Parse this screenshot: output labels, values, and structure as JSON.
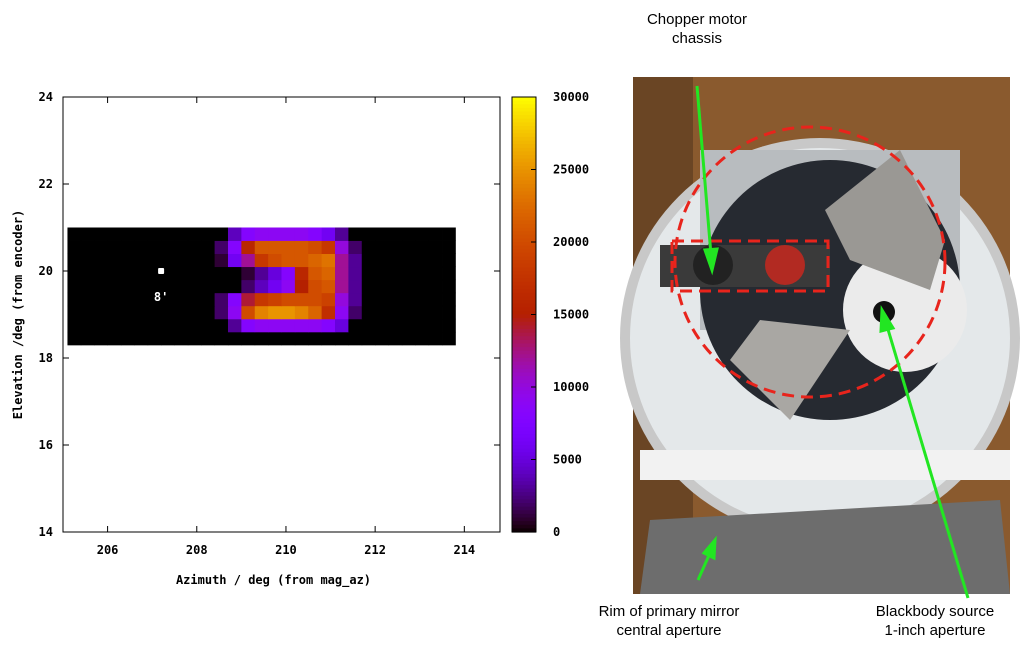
{
  "chart_data": {
    "type": "heatmap",
    "xlabel": "Azimuth / deg (from mag_az)",
    "ylabel": "Elevation /deg (from encoder)",
    "xlim": [
      205,
      214.8
    ],
    "xticks": [
      206,
      208,
      210,
      212,
      214
    ],
    "ylim": [
      14,
      24
    ],
    "yticks": [
      14,
      16,
      18,
      20,
      22,
      24
    ],
    "cblim": [
      0,
      30000
    ],
    "cbticks": [
      0,
      5000,
      10000,
      15000,
      20000,
      25000,
      30000
    ],
    "x": [
      205.25,
      205.55,
      205.85,
      206.15,
      206.45,
      206.75,
      207.05,
      207.35,
      207.65,
      207.95,
      208.25,
      208.55,
      208.85,
      209.15,
      209.45,
      209.75,
      210.05,
      210.35,
      210.65,
      210.95,
      211.25,
      211.55,
      211.85,
      212.15,
      212.45,
      212.75,
      213.05,
      213.35,
      213.65
    ],
    "y": [
      18.45,
      18.75,
      19.05,
      19.35,
      19.65,
      19.95,
      20.25,
      20.55,
      20.85
    ],
    "z": [
      [
        0,
        0,
        0,
        0,
        0,
        0,
        0,
        0,
        0,
        0,
        0,
        0,
        0,
        0,
        0,
        0,
        0,
        0,
        0,
        0,
        0,
        0,
        0,
        0,
        0,
        0,
        0,
        0,
        0
      ],
      [
        0,
        0,
        0,
        0,
        0,
        0,
        0,
        0,
        0,
        0,
        0,
        0,
        3000,
        8000,
        9000,
        9000,
        9000,
        9000,
        9000,
        8000,
        5000,
        0,
        0,
        0,
        0,
        0,
        0,
        0,
        0
      ],
      [
        0,
        0,
        0,
        0,
        0,
        0,
        0,
        0,
        0,
        0,
        0,
        2000,
        9000,
        20000,
        24000,
        25000,
        25000,
        24000,
        22000,
        17000,
        9000,
        2000,
        0,
        0,
        0,
        0,
        0,
        0,
        0
      ],
      [
        0,
        0,
        0,
        0,
        0,
        0,
        0,
        0,
        0,
        0,
        0,
        2000,
        8000,
        14000,
        18000,
        19000,
        20000,
        20000,
        20000,
        19000,
        10000,
        3000,
        0,
        0,
        0,
        0,
        0,
        0,
        0
      ],
      [
        0,
        0,
        0,
        0,
        0,
        0,
        0,
        0,
        0,
        0,
        0,
        0,
        0,
        2000,
        4000,
        6000,
        9000,
        15000,
        20000,
        21000,
        12000,
        3000,
        0,
        0,
        0,
        0,
        0,
        0,
        0
      ],
      [
        0,
        0,
        0,
        0,
        0,
        0,
        0,
        0,
        0,
        0,
        0,
        0,
        0,
        1000,
        3000,
        5000,
        8000,
        16000,
        21000,
        22000,
        12000,
        3000,
        0,
        0,
        0,
        0,
        0,
        0,
        0
      ],
      [
        0,
        0,
        0,
        0,
        0,
        0,
        0,
        0,
        0,
        0,
        0,
        1000,
        6000,
        12000,
        18000,
        20000,
        21000,
        21000,
        22000,
        23000,
        12000,
        3000,
        0,
        0,
        0,
        0,
        0,
        0,
        0
      ],
      [
        0,
        0,
        0,
        0,
        0,
        0,
        0,
        0,
        0,
        0,
        0,
        2000,
        8000,
        16000,
        21000,
        21000,
        21000,
        21000,
        20000,
        18000,
        10000,
        2000,
        0,
        0,
        0,
        0,
        0,
        0,
        0
      ],
      [
        0,
        0,
        0,
        0,
        0,
        0,
        0,
        0,
        0,
        0,
        0,
        0,
        4000,
        8000,
        9000,
        9000,
        9000,
        9000,
        8000,
        6000,
        3000,
        0,
        0,
        0,
        0,
        0,
        0,
        0,
        0
      ]
    ],
    "marker": {
      "x": 207.2,
      "y": 20.0,
      "label": "8'"
    }
  },
  "photo": {
    "annotations": [
      {
        "lines": [
          "Chopper motor",
          "chassis"
        ]
      },
      {
        "lines": [
          "Rim of primary mirror",
          "central aperture"
        ]
      },
      {
        "lines": [
          "Blackbody source",
          "1-inch aperture"
        ]
      }
    ]
  }
}
